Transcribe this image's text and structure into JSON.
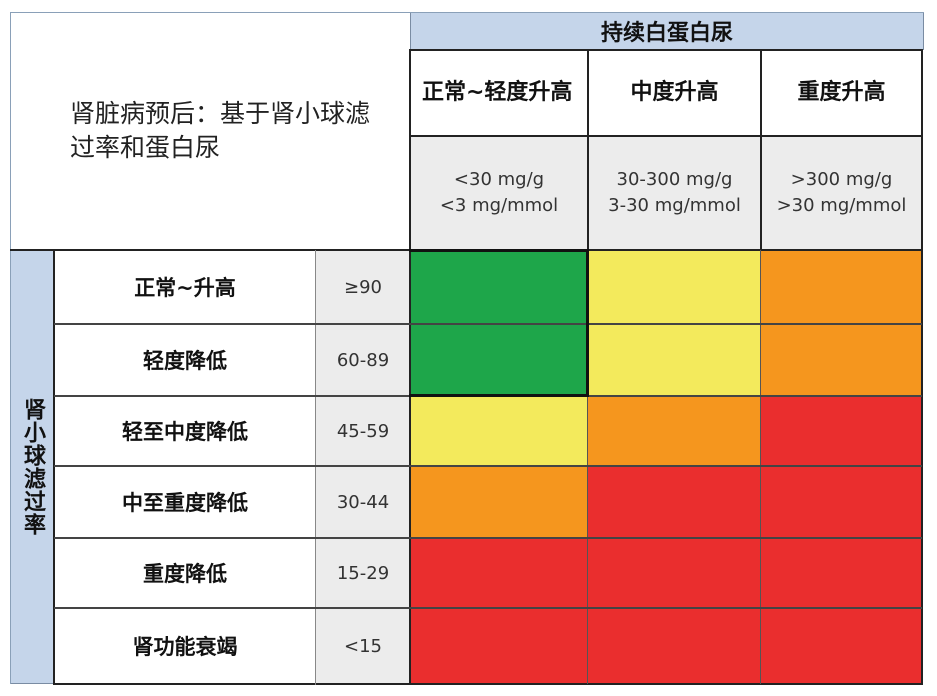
{
  "title": "肾脏病预后：基于肾小球滤\n过率和蛋白尿",
  "albuminuria_band": "持续白蛋白尿",
  "gfr_band": "肾小球滤过率",
  "colors": {
    "green": "#1ea64a",
    "yellow": "#f3ea5c",
    "orange": "#f5961e",
    "red": "#ea2e2e",
    "band": "#c5d5ea",
    "grey": "#ececec",
    "border": "#222222"
  },
  "chart_data": {
    "type": "heatmap",
    "columns": [
      {
        "label": "正常~轻度升高",
        "unit": "<30 mg/g\n<3 mg/mmol"
      },
      {
        "label": "中度升高",
        "unit": "30-300 mg/g\n3-30 mg/mmol"
      },
      {
        "label": "重度升高",
        "unit": ">300 mg/g\n>30 mg/mmol"
      }
    ],
    "rows": [
      {
        "label": "正常~升高",
        "range": "≥90",
        "risk": [
          "green",
          "yellow",
          "orange"
        ]
      },
      {
        "label": "轻度降低",
        "range": "60-89",
        "risk": [
          "green",
          "yellow",
          "orange"
        ]
      },
      {
        "label": "轻至中度降低",
        "range": "45-59",
        "risk": [
          "yellow",
          "orange",
          "red"
        ]
      },
      {
        "label": "中至重度降低",
        "range": "30-44",
        "risk": [
          "orange",
          "red",
          "red"
        ]
      },
      {
        "label": "重度降低",
        "range": "15-29",
        "risk": [
          "red",
          "red",
          "red"
        ]
      },
      {
        "label": "肾功能衰竭",
        "range": "<15",
        "risk": [
          "red",
          "red",
          "red"
        ]
      }
    ]
  }
}
